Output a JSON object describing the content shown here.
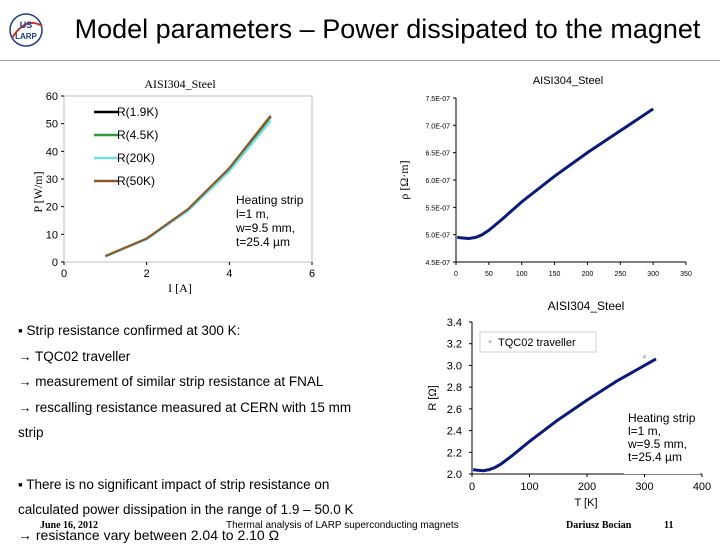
{
  "slide": {
    "title": "Model parameters – Power dissipated to the magnet",
    "logo_text": [
      "US",
      "LARP"
    ],
    "colors": {
      "accent": "#1f3b8f",
      "rule": "#9aa6c8"
    }
  },
  "bullets": [
    "▪ Strip resistance confirmed at 300 K:",
    "→ TQC02 traveller",
    "→ measurement of similar strip resistance at FNAL",
    "→ rescalling resistance measured at CERN with 15 mm",
    "strip",
    "",
    "▪ There is no significant impact of strip resistance on",
    "calculated power dissipation in the range of 1.9 – 50.0 K",
    "→ resistance vary between 2.04 to 2.10 Ω"
  ],
  "footer": {
    "date": "June 16, 2012",
    "center": "Thermal analysis of LARP superconducting magnets",
    "author": "Dariusz Bocian",
    "page": "11"
  },
  "chart_data": [
    {
      "type": "line",
      "title": "AISI304_Steel",
      "xlabel": "I [A]",
      "ylabel": "P [W/m]",
      "xlim": [
        0,
        6
      ],
      "ylim": [
        0,
        60
      ],
      "xticks": [
        "0",
        "2",
        "4",
        "6"
      ],
      "yticks": [
        "0",
        "10",
        "20",
        "30",
        "40",
        "50",
        "60"
      ],
      "legend_position": "top-left",
      "annotation": [
        "Heating strip",
        "l=1 m,",
        "w=9.5 mm,",
        "t=25.4 µm"
      ],
      "series": [
        {
          "name": "R(1.9K)",
          "color": "#000000",
          "x": [
            1,
            2,
            3,
            4,
            5
          ],
          "y": [
            2.1,
            8.4,
            18.9,
            33.6,
            52.5
          ]
        },
        {
          "name": "R(4.5K)",
          "color": "#2e9b3a",
          "x": [
            1,
            2,
            3,
            4,
            5
          ],
          "y": [
            2.1,
            8.4,
            18.9,
            33.6,
            52.5
          ]
        },
        {
          "name": "R(20K)",
          "color": "#6de0e6",
          "x": [
            1,
            2,
            3,
            4,
            5
          ],
          "y": [
            2.05,
            8.2,
            18.5,
            32.8,
            51.0
          ]
        },
        {
          "name": "R(50K)",
          "color": "#8b5a2b",
          "x": [
            1,
            2,
            3,
            4,
            5
          ],
          "y": [
            2.1,
            8.5,
            19.1,
            33.9,
            52.9
          ]
        }
      ]
    },
    {
      "type": "line",
      "title": "AISI304_Steel",
      "xlabel": "",
      "ylabel": "ρ [Ω·m]",
      "xlim": [
        0,
        350
      ],
      "ylim": [
        4.5e-07,
        7.5e-07
      ],
      "xticks": [
        "0",
        "50",
        "100",
        "150",
        "200",
        "250",
        "300",
        "350"
      ],
      "yticks": [
        "4.5E-07",
        "5.0E-07",
        "5.5E-07",
        "6.0E-07",
        "6.5E-07",
        "7.0E-07",
        "7.5E-07"
      ],
      "series": [
        {
          "name": "",
          "color": "#0a1a7a",
          "x": [
            1.9,
            10,
            20,
            30,
            40,
            50,
            70,
            100,
            150,
            200,
            250,
            300
          ],
          "y": [
            4.95e-07,
            4.94e-07,
            4.93e-07,
            4.95e-07,
            5e-07,
            5.08e-07,
            5.28e-07,
            5.6e-07,
            6.07e-07,
            6.5e-07,
            6.9e-07,
            7.3e-07
          ]
        }
      ]
    },
    {
      "type": "line",
      "title": "AISI304_Steel",
      "xlabel": "T [K]",
      "ylabel": "R [Ω]",
      "xlim": [
        0,
        400
      ],
      "ylim": [
        2.0,
        3.4
      ],
      "xticks": [
        "0",
        "100",
        "200",
        "300",
        "400"
      ],
      "yticks": [
        "2.0",
        "2.2",
        "2.4",
        "2.6",
        "2.8",
        "3.0",
        "3.2",
        "3.4"
      ],
      "legend_position": "top-right",
      "annotation": [
        "Heating strip",
        "l=1 m,",
        "w=9.5 mm,",
        "t=25.4 µm"
      ],
      "series": [
        {
          "name": "",
          "color": "#0a1a7a",
          "x": [
            1.9,
            10,
            20,
            30,
            40,
            50,
            70,
            100,
            150,
            200,
            250,
            300,
            320
          ],
          "y": [
            2.04,
            2.035,
            2.03,
            2.04,
            2.06,
            2.09,
            2.17,
            2.3,
            2.5,
            2.68,
            2.85,
            3.0,
            3.06
          ]
        },
        {
          "name": "TQC02 traveller",
          "marker": "*",
          "color": "#9aa6c8",
          "x": [
            300
          ],
          "y": [
            3.06
          ]
        }
      ]
    }
  ]
}
